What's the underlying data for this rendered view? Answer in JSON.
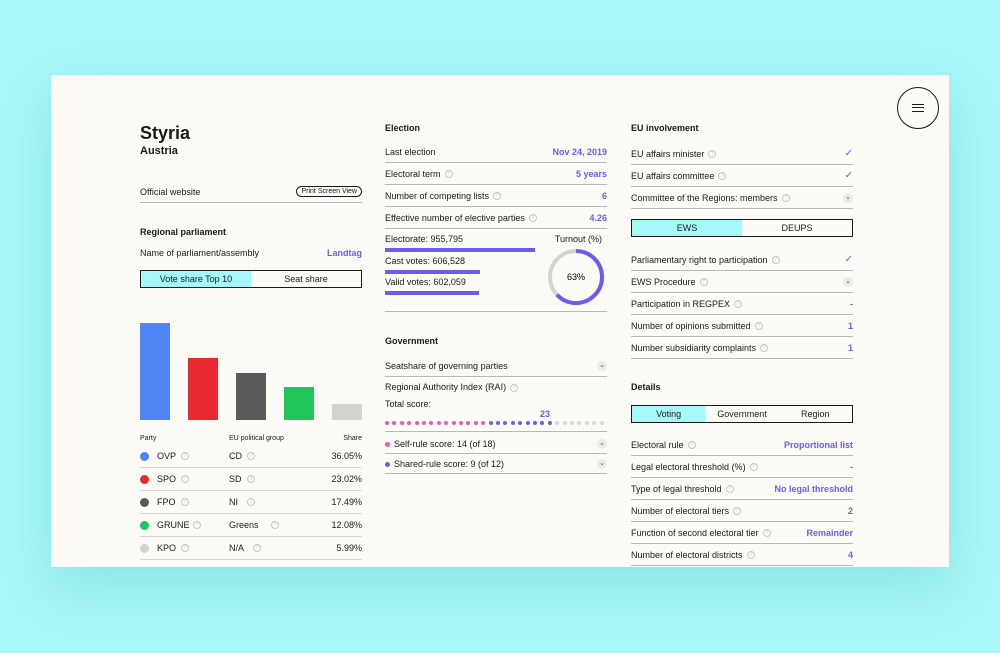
{
  "menu": {
    "icon": "hamburger-icon"
  },
  "region": {
    "name": "Styria",
    "country": "Austria"
  },
  "official_website": {
    "label": "Official website",
    "print_label": "Print Screen View"
  },
  "regional_parliament": {
    "heading": "Regional parliament",
    "name_label": "Name of parliament/assembly",
    "name_value": "Landtag",
    "tabs": [
      "Vote share Top 10",
      "Seat share"
    ],
    "columns": [
      "Party",
      "EU political group",
      "Share"
    ]
  },
  "chart_data": {
    "type": "bar",
    "categories": [
      "OVP",
      "SPO",
      "FPO",
      "GRUNE",
      "KPO"
    ],
    "values": [
      36.05,
      23.02,
      17.49,
      12.08,
      5.99
    ],
    "colors": [
      "#4f86f7",
      "#e8292f",
      "#5a5a5a",
      "#20c65a",
      "#d3d3d0"
    ]
  },
  "parties": [
    {
      "name": "OVP",
      "group": "CD",
      "share": "36.05%",
      "color": "#4f86f7"
    },
    {
      "name": "SPO",
      "group": "SD",
      "share": "23.02%",
      "color": "#e8292f"
    },
    {
      "name": "FPO",
      "group": "NI",
      "share": "17.49%",
      "color": "#5a5a5a"
    },
    {
      "name": "GRUNE",
      "group": "Greens",
      "share": "12.08%",
      "color": "#20c65a"
    },
    {
      "name": "KPO",
      "group": "N/A",
      "share": "5.99%",
      "color": "#d3d3d0"
    }
  ],
  "election": {
    "heading": "Election",
    "rows": [
      {
        "label": "Last election",
        "value": "Nov 24, 2019"
      },
      {
        "label": "Electoral term",
        "value": "5 years"
      },
      {
        "label": "Number of competing lists",
        "value": "6"
      },
      {
        "label": "Effective number of elective parties",
        "value": "4.26"
      }
    ],
    "electorate": "Electorate: 955,795",
    "cast_votes": "Cast votes: 606,528",
    "valid_votes": "Valid votes: 602,059",
    "turnout_label": "Turnout (%)",
    "turnout_value": "63%",
    "turnout_fraction": 0.63
  },
  "government": {
    "heading": "Government",
    "seatshare": "Seatshare of governing parties",
    "rai": "Regional Authority Index (RAI)",
    "total_score_label": "Total score:",
    "total_score": "23",
    "self_rule": "Self-rule score: 14 (of 18)",
    "shared_rule": "Shared-rule score: 9 (of 12)",
    "self_rule_score": 14,
    "shared_rule_score": 9,
    "max_score": 30
  },
  "eu": {
    "heading": "EU involvement",
    "rows": [
      {
        "label": "EU affairs minister",
        "value": "✓"
      },
      {
        "label": "EU affairs committee",
        "value": "✓"
      },
      {
        "label": "Committee of the Regions: members",
        "value": "⌄"
      }
    ],
    "tabs": [
      "EWS",
      "DEUPS"
    ],
    "ews_rows": [
      {
        "label": "Parliamentary right to participation",
        "value": "✓"
      },
      {
        "label": "EWS Procedure",
        "value": "⌄"
      },
      {
        "label": "Participation in REGPEX",
        "value": "-"
      },
      {
        "label": "Number of opinions submitted",
        "value": "1"
      },
      {
        "label": "Number subsidiarity complaints",
        "value": "1"
      }
    ]
  },
  "details": {
    "heading": "Details",
    "tabs": [
      "Voting",
      "Government",
      "Region"
    ],
    "rows": [
      {
        "label": "Electoral rule",
        "value": "Proportional list"
      },
      {
        "label": "Legal electoral threshold (%)",
        "value": "-"
      },
      {
        "label": "Type of legal threshold",
        "value": "No legal threshold"
      },
      {
        "label": "Number of electoral tiers",
        "value": "2"
      },
      {
        "label": "Function of second electoral tier",
        "value": "Remainder"
      },
      {
        "label": "Number of electoral districts",
        "value": "4"
      }
    ]
  }
}
